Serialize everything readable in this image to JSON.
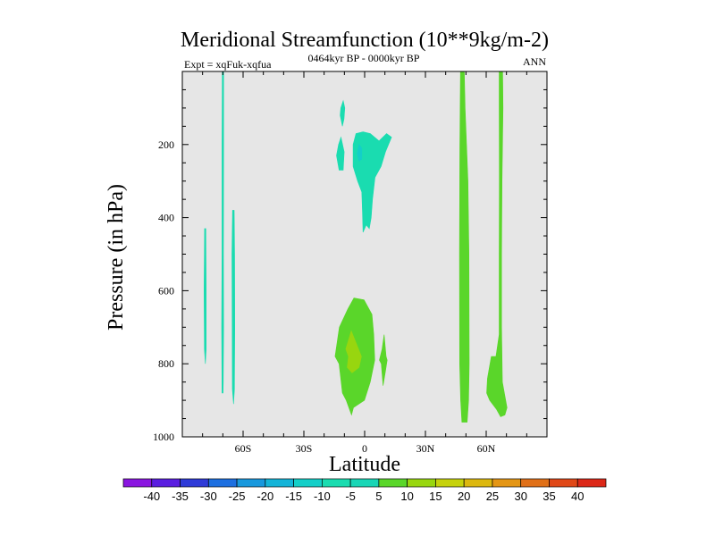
{
  "chart_data": {
    "type": "contour",
    "title": "Meridional Streamfunction (10**9kg/m-2)",
    "left_string": "Expt = xqFuk-xqfua",
    "center_string": "0464kyr BP - 0000kyr BP",
    "right_string": "ANN",
    "xlabel": "Latitude",
    "ylabel": "Pressure (in hPa)",
    "xlim": [
      -90,
      90
    ],
    "ylim": [
      1000,
      0
    ],
    "x_ticks": [
      {
        "value": -60,
        "label": "60S"
      },
      {
        "value": -30,
        "label": "30S"
      },
      {
        "value": 0,
        "label": "0"
      },
      {
        "value": 30,
        "label": "30N"
      },
      {
        "value": 60,
        "label": "60N"
      }
    ],
    "y_ticks": [
      {
        "value": 200,
        "label": "200"
      },
      {
        "value": 400,
        "label": "400"
      },
      {
        "value": 600,
        "label": "600"
      },
      {
        "value": 800,
        "label": "800"
      },
      {
        "value": 1000,
        "label": "1000"
      }
    ],
    "background_color": "#e6e6e6",
    "contour_levels": [
      -40,
      -35,
      -30,
      -25,
      -20,
      -15,
      -10,
      -5,
      5,
      10,
      15,
      20,
      25,
      30,
      35,
      40
    ],
    "colorbar_colors": [
      "#8a16e0",
      "#5a1ee0",
      "#2f3bd8",
      "#1d6fe0",
      "#1898dd",
      "#14b4d8",
      "#14cfc8",
      "#1adcb0",
      "#19d6b6",
      "#5ad62a",
      "#98d60f",
      "#c6d20c",
      "#dcb80f",
      "#e49615",
      "#e07018",
      "#e04818",
      "#dc2818"
    ],
    "regions": [
      {
        "name": "nh-high-lat-band-a",
        "level": 5,
        "color": "#5ad62a",
        "points": [
          [
            47.3,
            0
          ],
          [
            49.2,
            0
          ],
          [
            49.6,
            100
          ],
          [
            51,
            300
          ],
          [
            51.5,
            500
          ],
          [
            51.6,
            800
          ],
          [
            51.3,
            900
          ],
          [
            50.6,
            960
          ],
          [
            48,
            960
          ],
          [
            47.4,
            900
          ],
          [
            46.9,
            800
          ],
          [
            46.8,
            500
          ],
          [
            47,
            200
          ]
        ]
      },
      {
        "name": "nh-high-lat-band-b",
        "level": 5,
        "color": "#5ad62a",
        "points": [
          [
            66.4,
            0
          ],
          [
            68.1,
            0
          ],
          [
            68.3,
            100
          ],
          [
            67.8,
            300
          ],
          [
            67.6,
            500
          ],
          [
            67.6,
            700
          ],
          [
            68,
            850
          ],
          [
            69.6,
            900
          ],
          [
            70.3,
            920
          ],
          [
            69.2,
            940
          ],
          [
            67.1,
            945
          ],
          [
            65.1,
            925
          ],
          [
            61.7,
            900
          ],
          [
            60.2,
            880
          ],
          [
            60.6,
            840
          ],
          [
            62.5,
            780
          ],
          [
            64.8,
            780
          ],
          [
            66.4,
            720
          ],
          [
            66.4,
            500
          ],
          [
            66.5,
            300
          ],
          [
            66.4,
            100
          ]
        ]
      },
      {
        "name": "tropical-lower-positive-cell",
        "level": 5,
        "color": "#5ad62a",
        "points": [
          [
            -5.3,
            620
          ],
          [
            -0.3,
            625
          ],
          [
            3.6,
            665
          ],
          [
            4.5,
            720
          ],
          [
            5,
            790
          ],
          [
            2.8,
            850
          ],
          [
            -0.1,
            900
          ],
          [
            -5.5,
            920
          ],
          [
            -6.5,
            940
          ],
          [
            -9.1,
            900
          ],
          [
            -11,
            880
          ],
          [
            -12.6,
            800
          ],
          [
            -14.6,
            780
          ],
          [
            -12.5,
            700
          ],
          [
            -8.3,
            650
          ]
        ]
      },
      {
        "name": "tropical-lower-positive-core",
        "level": 10,
        "color": "#98d60f",
        "points": [
          [
            -6.6,
            710
          ],
          [
            -3.7,
            750
          ],
          [
            -1.6,
            780
          ],
          [
            -2.8,
            810
          ],
          [
            -6.2,
            825
          ],
          [
            -8.6,
            810
          ],
          [
            -8,
            780
          ],
          [
            -9.3,
            760
          ]
        ]
      },
      {
        "name": "tropical-lower-positive-small",
        "level": 5,
        "color": "#5ad62a",
        "points": [
          [
            9.6,
            720
          ],
          [
            10.6,
            780
          ],
          [
            11.1,
            790
          ],
          [
            10.3,
            820
          ],
          [
            9.1,
            860
          ],
          [
            8.2,
            800
          ],
          [
            7.3,
            790
          ],
          [
            8.6,
            760
          ]
        ]
      },
      {
        "name": "tropical-upper-negative-cell",
        "level": -5,
        "color": "#1adcb0",
        "points": [
          [
            -4.3,
            170
          ],
          [
            -0.8,
            165
          ],
          [
            2.8,
            170
          ],
          [
            7.1,
            190
          ],
          [
            10.8,
            170
          ],
          [
            13.3,
            180
          ],
          [
            10.3,
            220
          ],
          [
            8.1,
            260
          ],
          [
            5.1,
            290
          ],
          [
            3.9,
            350
          ],
          [
            3.2,
            400
          ],
          [
            2.3,
            430
          ],
          [
            0.8,
            420
          ],
          [
            -0.8,
            440
          ],
          [
            -1.1,
            380
          ],
          [
            -1.4,
            330
          ],
          [
            -3.5,
            300
          ],
          [
            -5.7,
            260
          ],
          [
            -5.7,
            200
          ]
        ]
      },
      {
        "name": "tropical-upper-negative-core",
        "level": -10,
        "color": "#14cfc8",
        "points": [
          [
            -2.8,
            200
          ],
          [
            -1.4,
            210
          ],
          [
            -1.4,
            240
          ],
          [
            -2.8,
            245
          ],
          [
            -3.7,
            225
          ]
        ]
      },
      {
        "name": "tropical-upper-negative-small-a",
        "level": -5,
        "color": "#1adcb0",
        "points": [
          [
            -10.6,
            80
          ],
          [
            -9.8,
            100
          ],
          [
            -10.2,
            130
          ],
          [
            -11,
            150
          ],
          [
            -12.1,
            120
          ],
          [
            -11.8,
            100
          ]
        ]
      },
      {
        "name": "tropical-upper-negative-small-b",
        "level": -5,
        "color": "#1adcb0",
        "points": [
          [
            -11.7,
            180
          ],
          [
            -10.1,
            220
          ],
          [
            -10.6,
            270
          ],
          [
            -12.6,
            270
          ],
          [
            -13.9,
            230
          ],
          [
            -12.9,
            200
          ]
        ]
      },
      {
        "name": "sh-high-lat-band-a",
        "level": -5,
        "color": "#1adcb0",
        "points": [
          [
            -70.3,
            0
          ],
          [
            -69.6,
            0
          ],
          [
            -69.6,
            200
          ],
          [
            -69.7,
            500
          ],
          [
            -69.6,
            700
          ],
          [
            -69.8,
            850
          ],
          [
            -69.9,
            880
          ],
          [
            -70.4,
            880
          ],
          [
            -70.6,
            700
          ],
          [
            -70.4,
            500
          ],
          [
            -70.4,
            200
          ]
        ]
      },
      {
        "name": "sh-high-lat-band-b",
        "level": -5,
        "color": "#1adcb0",
        "points": [
          [
            -65.2,
            380
          ],
          [
            -64.4,
            380
          ],
          [
            -64.2,
            500
          ],
          [
            -64.1,
            700
          ],
          [
            -64.3,
            870
          ],
          [
            -64.7,
            910
          ],
          [
            -65.3,
            870
          ],
          [
            -65.4,
            700
          ],
          [
            -65.5,
            500
          ]
        ]
      },
      {
        "name": "sh-high-lat-band-c",
        "level": -5,
        "color": "#1adcb0",
        "points": [
          [
            -79,
            430
          ],
          [
            -78.4,
            430
          ],
          [
            -78.2,
            600
          ],
          [
            -78.2,
            760
          ],
          [
            -78.6,
            800
          ],
          [
            -79.1,
            760
          ],
          [
            -79.3,
            600
          ]
        ]
      }
    ]
  }
}
